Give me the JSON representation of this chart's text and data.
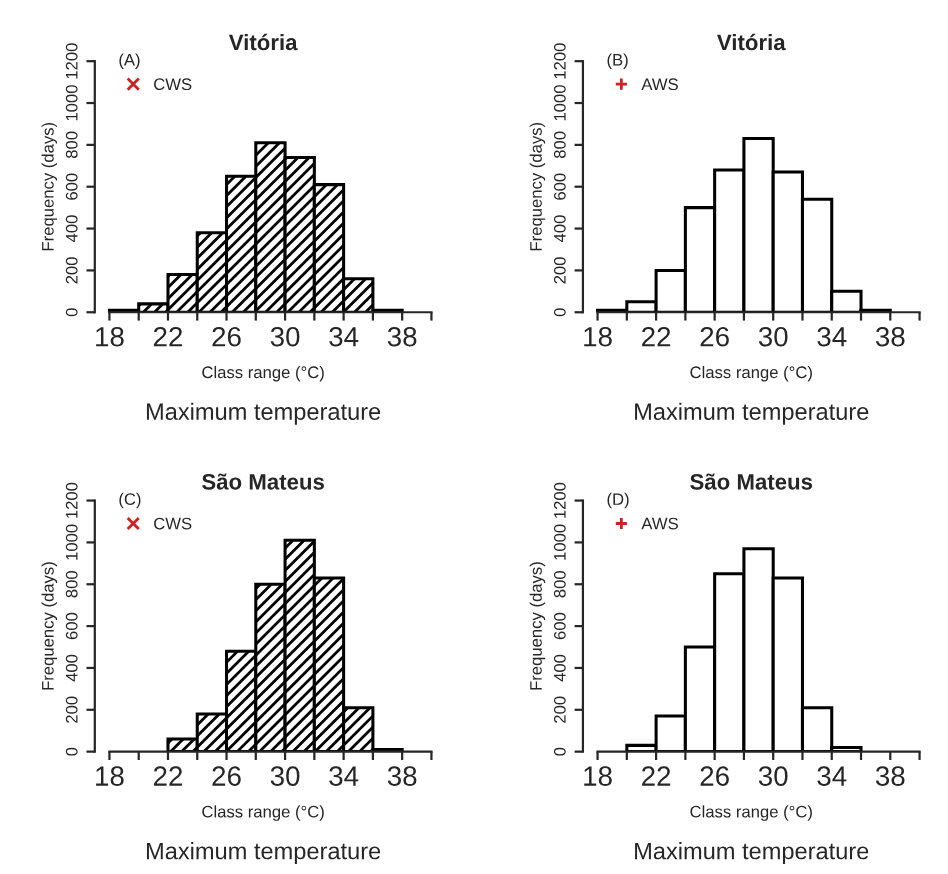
{
  "chart_data": [
    {
      "type": "histogram",
      "title": "Vitória",
      "xlabel": "Class range (°C)",
      "ylabel": "Frequency (days)",
      "annotations": [
        "(A)",
        "Maximum temperature"
      ],
      "bins": [
        18,
        20,
        22,
        24,
        26,
        28,
        30,
        32,
        34,
        36,
        38
      ],
      "series": [
        {
          "name": "CWS",
          "color": "#000000",
          "values": [
            10,
            40,
            180,
            380,
            650,
            810,
            740,
            610,
            160,
            10
          ]
        }
      ],
      "marker": "cross",
      "legend": "top left",
      "xlim": [
        17,
        40
      ],
      "xticks": [
        18,
        {
          "value": 20,
          "label": null
        },
        22,
        {
          "value": 24,
          "label": null
        },
        26,
        {
          "value": 28,
          "label": null
        },
        30,
        {
          "value": 32,
          "label": null
        },
        34,
        {
          "value": 36,
          "label": null
        },
        38,
        {
          "value": 40,
          "label": null
        }
      ],
      "ylim": [
        0,
        1200
      ],
      "yticks": [
        0,
        200,
        400,
        600,
        800,
        1000,
        1200
      ]
    },
    {
      "type": "histogram",
      "title": "Vitória",
      "xlabel": "Class range (°C)",
      "ylabel": "Frequency (days)",
      "annotations": [
        "(B)",
        "Maximum temperature"
      ],
      "bins": [
        18,
        20,
        22,
        24,
        26,
        28,
        30,
        32,
        34,
        36,
        38
      ],
      "series": [
        {
          "name": "AWS",
          "color": "#ffffff",
          "values": [
            10,
            50,
            200,
            500,
            680,
            830,
            670,
            540,
            100,
            10
          ]
        }
      ],
      "marker": "plus",
      "legend": "top left",
      "xlim": [
        17,
        40
      ],
      "xticks": [
        18,
        {
          "value": 20,
          "label": null
        },
        22,
        {
          "value": 24,
          "label": null
        },
        26,
        {
          "value": 28,
          "label": null
        },
        30,
        {
          "value": 32,
          "label": null
        },
        34,
        {
          "value": 36,
          "label": null
        },
        38,
        {
          "value": 40,
          "label": null
        }
      ],
      "ylim": [
        0,
        1200
      ],
      "yticks": [
        0,
        200,
        400,
        600,
        800,
        1000,
        1200
      ]
    },
    {
      "type": "histogram",
      "title": "São Mateus",
      "xlabel": "Class range (°C)",
      "ylabel": "Frequency (days)",
      "annotations": [
        "(C)",
        "Maximum temperature"
      ],
      "bins": [
        22,
        24,
        26,
        28,
        30,
        32,
        34,
        36,
        38
      ],
      "series": [
        {
          "name": "CWS",
          "color": "#000000",
          "values": [
            60,
            180,
            480,
            800,
            1010,
            830,
            210,
            10
          ]
        }
      ],
      "marker": "cross",
      "legend": "top left",
      "xlim": [
        17,
        40
      ],
      "xticks": [
        18,
        {
          "value": 20,
          "label": null
        },
        22,
        {
          "value": 24,
          "label": null
        },
        26,
        {
          "value": 28,
          "label": null
        },
        30,
        {
          "value": 32,
          "label": null
        },
        34,
        {
          "value": 36,
          "label": null
        },
        38,
        {
          "value": 40,
          "label": null
        }
      ],
      "ylim": [
        0,
        1200
      ],
      "yticks": [
        0,
        200,
        400,
        600,
        800,
        1000,
        1200
      ]
    },
    {
      "type": "histogram",
      "title": "São Mateus",
      "xlabel": "Class range (°C)",
      "ylabel": "Frequency (days)",
      "annotations": [
        "(D)",
        "Maximum temperature"
      ],
      "bins": [
        20,
        22,
        24,
        26,
        28,
        30,
        32,
        34,
        36
      ],
      "series": [
        {
          "name": "AWS",
          "color": "#ffffff",
          "values": [
            30,
            170,
            500,
            850,
            970,
            830,
            210,
            20
          ]
        }
      ],
      "marker": "plus",
      "legend": "top left",
      "xlim": [
        17,
        40
      ],
      "xticks": [
        18,
        {
          "value": 20,
          "label": null
        },
        22,
        {
          "value": 24,
          "label": null
        },
        26,
        {
          "value": 28,
          "label": null
        },
        30,
        {
          "value": 32,
          "label": null
        },
        34,
        {
          "value": 36,
          "label": null
        },
        38,
        {
          "value": 40,
          "label": null
        }
      ],
      "ylim": [
        0,
        1200
      ],
      "yticks": [
        0,
        200,
        400,
        600,
        800,
        1000,
        1200
      ]
    }
  ]
}
